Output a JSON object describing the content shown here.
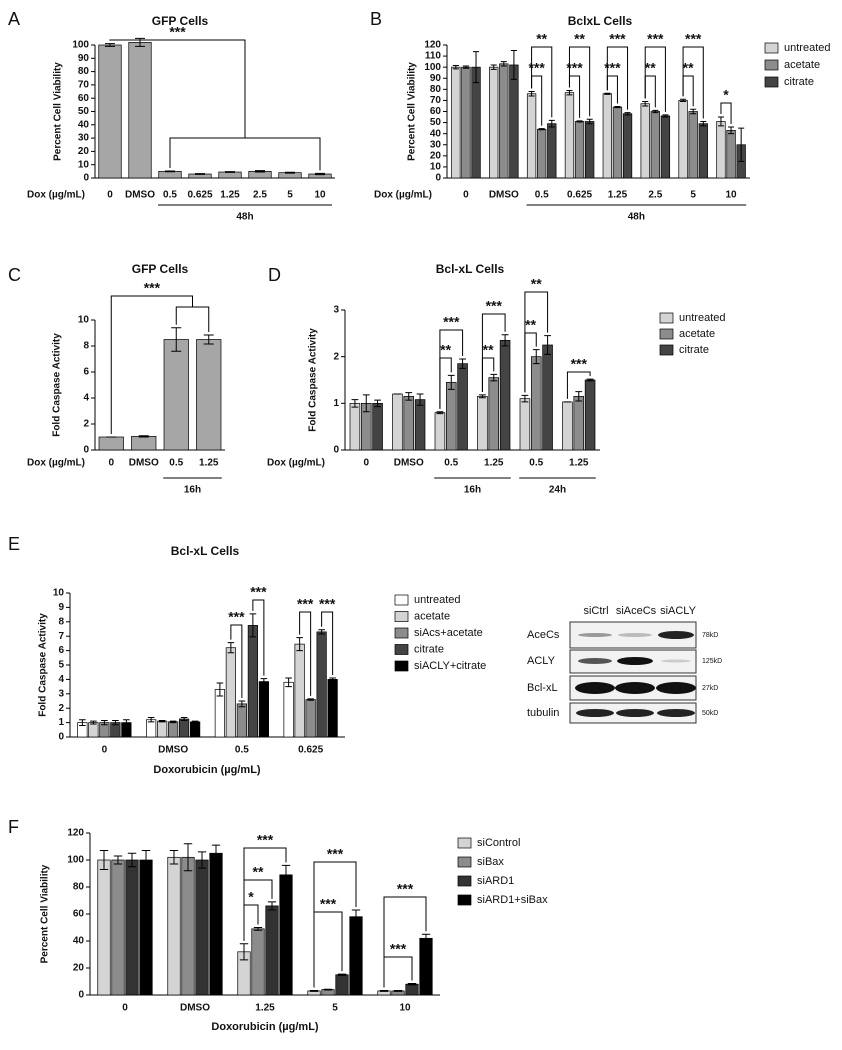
{
  "panel_labels": [
    "A",
    "B",
    "C",
    "D",
    "E",
    "F"
  ],
  "chart_data": [
    {
      "type": "bar",
      "title": "GFP Cells",
      "ylabel": "Percent Cell Viability",
      "xlabel": "Dox (µg/mL)",
      "categories": [
        "0",
        "DMSO",
        "0.5",
        "0.625",
        "1.25",
        "2.5",
        "5",
        "10"
      ],
      "values": [
        100,
        102,
        5,
        3,
        4.5,
        5,
        4,
        3
      ],
      "errors": [
        1,
        3,
        0.3,
        0.3,
        0.3,
        0.5,
        0.3,
        0.5
      ],
      "color": "#a6a6a6",
      "ylim": [
        0,
        100
      ],
      "yticks": [
        0,
        10,
        20,
        30,
        40,
        50,
        60,
        70,
        80,
        90,
        100
      ],
      "groups": [
        "48h"
      ],
      "annotations": [
        "***"
      ]
    },
    {
      "type": "bar",
      "title": "BclxL Cells",
      "ylabel": "Percent Cell Viability",
      "xlabel": "Dox (µg/mL)",
      "categories": [
        "0",
        "DMSO",
        "0.5",
        "0.625",
        "1.25",
        "2.5",
        "5",
        "10"
      ],
      "series": [
        {
          "name": "untreated",
          "color": "#d4d4d4",
          "values": [
            100,
            100,
            76,
            77,
            76,
            67,
            70,
            51
          ],
          "errors": [
            1.5,
            2,
            2,
            2,
            0.5,
            2,
            1,
            4
          ]
        },
        {
          "name": "acetate",
          "color": "#8c8c8c",
          "values": [
            100,
            103,
            44,
            51,
            64,
            60,
            60,
            43
          ],
          "errors": [
            1,
            2,
            0.5,
            0.5,
            0.5,
            1,
            2,
            3
          ]
        },
        {
          "name": "citrate",
          "color": "#444444",
          "values": [
            100,
            102,
            49,
            51,
            58,
            56,
            49,
            30
          ],
          "errors": [
            14,
            13,
            3,
            2,
            1,
            1,
            2,
            15
          ]
        }
      ],
      "ylim": [
        0,
        120
      ],
      "yticks": [
        0,
        10,
        20,
        30,
        40,
        50,
        60,
        70,
        80,
        90,
        100,
        110,
        120
      ],
      "groups": [
        "48h"
      ],
      "annotations": [
        "***",
        "**",
        "***",
        "**",
        "***",
        "***",
        "**",
        "***",
        "**",
        "***",
        "*"
      ]
    },
    {
      "type": "bar",
      "title": "GFP Cells",
      "ylabel": "Fold Caspase Activity",
      "xlabel": "Dox (µg/mL)",
      "categories": [
        "0",
        "DMSO",
        "0.5",
        "1.25"
      ],
      "values": [
        1,
        1.05,
        8.5,
        8.5
      ],
      "errors": [
        0,
        0.05,
        0.9,
        0.35
      ],
      "color": "#a6a6a6",
      "ylim": [
        0,
        10
      ],
      "yticks": [
        0,
        2,
        4,
        6,
        8,
        10
      ],
      "groups": [
        "16h"
      ],
      "annotations": [
        "***"
      ]
    },
    {
      "type": "bar",
      "title": "Bcl-xL Cells",
      "ylabel": "Fold Caspase Activity",
      "xlabel": "Dox (µg/mL)",
      "categories": [
        "0",
        "DMSO",
        "0.5",
        "1.25",
        "0.5",
        "1.25"
      ],
      "series": [
        {
          "name": "untreated",
          "color": "#d4d4d4",
          "values": [
            1.0,
            1.2,
            0.8,
            1.15,
            1.1,
            1.03
          ],
          "errors": [
            0.08,
            0,
            0.02,
            0.03,
            0.07,
            0
          ]
        },
        {
          "name": "acetate",
          "color": "#8c8c8c",
          "values": [
            1.0,
            1.15,
            1.45,
            1.55,
            2.0,
            1.15
          ],
          "errors": [
            0.18,
            0.08,
            0.15,
            0.07,
            0.15,
            0.1
          ]
        },
        {
          "name": "citrate",
          "color": "#444444",
          "values": [
            1.0,
            1.08,
            1.85,
            2.35,
            2.25,
            1.5
          ],
          "errors": [
            0.07,
            0.12,
            0.1,
            0.12,
            0.2,
            0.02
          ]
        }
      ],
      "ylim": [
        0,
        3
      ],
      "yticks": [
        0,
        1,
        2,
        3
      ],
      "groups": [
        "16h",
        "24h"
      ],
      "annotations": [
        "**",
        "***",
        "**",
        "***",
        "**",
        "**",
        "***"
      ]
    },
    {
      "type": "bar",
      "title": "Bcl-xL Cells",
      "ylabel": "Fold Caspase Activity",
      "xlabel": "Doxorubicin (µg/mL)",
      "categories": [
        "0",
        "DMSO",
        "0.5",
        "0.625"
      ],
      "series": [
        {
          "name": "untreated",
          "color": "#ffffff",
          "values": [
            1.0,
            1.2,
            3.3,
            3.8
          ],
          "errors": [
            0.2,
            0.15,
            0.45,
            0.3
          ]
        },
        {
          "name": "acetate",
          "color": "#d4d4d4",
          "values": [
            1.0,
            1.1,
            6.2,
            6.45
          ],
          "errors": [
            0.1,
            0.05,
            0.35,
            0.45
          ]
        },
        {
          "name": "siAcs+acetate",
          "color": "#8c8c8c",
          "values": [
            1.0,
            1.05,
            2.3,
            2.6
          ],
          "errors": [
            0.15,
            0.05,
            0.2,
            0.05
          ]
        },
        {
          "name": "citrate",
          "color": "#444444",
          "values": [
            1.0,
            1.25,
            7.75,
            7.3
          ],
          "errors": [
            0.15,
            0.1,
            0.8,
            0.15
          ]
        },
        {
          "name": "siACLY+citrate",
          "color": "#000000",
          "values": [
            1.0,
            1.05,
            3.85,
            4.0
          ],
          "errors": [
            0.2,
            0.05,
            0.2,
            0.1
          ]
        }
      ],
      "ylim": [
        0,
        10
      ],
      "yticks": [
        0,
        1,
        2,
        3,
        4,
        5,
        6,
        7,
        8,
        9,
        10
      ],
      "annotations": [
        "***",
        "***",
        "***",
        "***"
      ]
    },
    {
      "type": "bar",
      "ylabel": "Percent Cell Viability",
      "xlabel": "Doxorubicin (µg/mL)",
      "categories": [
        "0",
        "DMSO",
        "1.25",
        "5",
        "10"
      ],
      "series": [
        {
          "name": "siControl",
          "color": "#d4d4d4",
          "values": [
            100,
            102,
            32,
            3,
            3
          ],
          "errors": [
            7,
            5,
            6,
            0.3,
            0.3
          ]
        },
        {
          "name": "siBax",
          "color": "#8c8c8c",
          "values": [
            100,
            102,
            49,
            4,
            3
          ],
          "errors": [
            3,
            10,
            1,
            0.3,
            0.3
          ]
        },
        {
          "name": "siARD1",
          "color": "#333333",
          "values": [
            100,
            100,
            66,
            15,
            8
          ],
          "errors": [
            5,
            6,
            3,
            0.5,
            0.5
          ]
        },
        {
          "name": "siARD1+siBax",
          "color": "#000000",
          "values": [
            100,
            105,
            89,
            58,
            42
          ],
          "errors": [
            7,
            6,
            7,
            5,
            3
          ]
        }
      ],
      "ylim": [
        0,
        120
      ],
      "yticks": [
        0,
        20,
        40,
        60,
        80,
        100,
        120
      ],
      "annotations": [
        "*",
        "**",
        "***",
        "***",
        "***",
        "***",
        "***"
      ]
    }
  ],
  "blot": {
    "lanes": [
      "siCtrl",
      "siAceCs",
      "siACLY"
    ],
    "rows": [
      {
        "label": "AceCs",
        "size": "78kD"
      },
      {
        "label": "ACLY",
        "size": "125kD"
      },
      {
        "label": "Bcl-xL",
        "size": "27kD"
      },
      {
        "label": "tubulin",
        "size": "50kD"
      }
    ]
  }
}
